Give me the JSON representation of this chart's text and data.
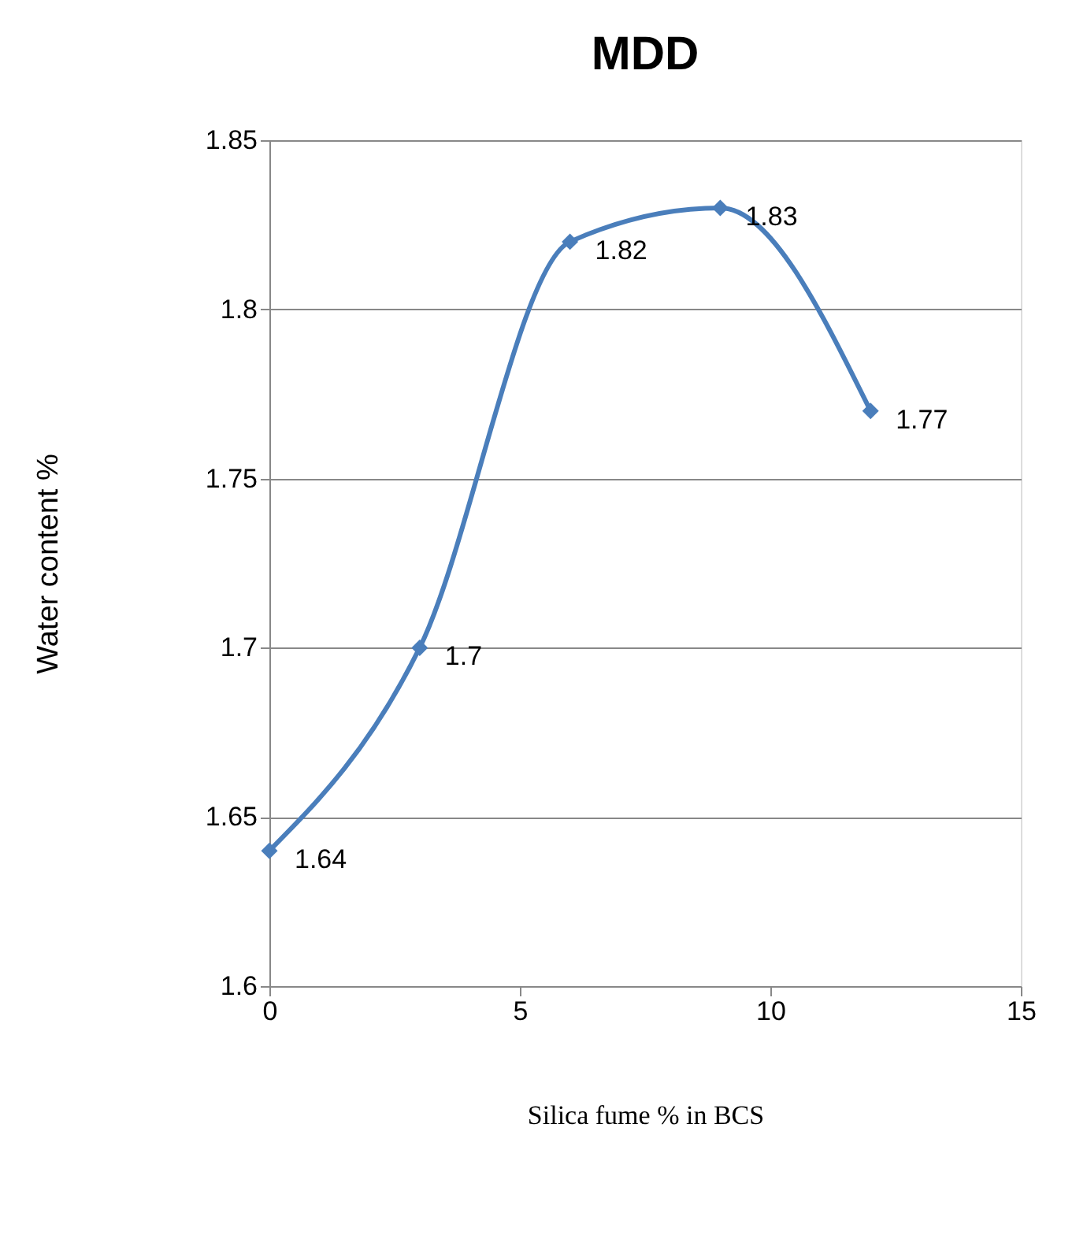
{
  "chart_data": {
    "type": "line",
    "title": "MDD",
    "xlabel": "Silica fume %  in BCS",
    "ylabel": "Water content %",
    "x": [
      0,
      3,
      6,
      9,
      12
    ],
    "series": [
      {
        "color": "#4a7ebb",
        "values": [
          1.64,
          1.7,
          1.82,
          1.83,
          1.77
        ]
      }
    ],
    "xlim": [
      0,
      15
    ],
    "xticks": [
      0,
      5,
      10,
      15
    ],
    "ylim": [
      1.6,
      1.85
    ],
    "yticks": [
      1.6,
      1.65,
      1.7,
      1.75,
      1.8,
      1.85
    ],
    "grid": "y",
    "marker": "diamond",
    "line_style": "solid",
    "data_labels": true,
    "legend": false
  }
}
